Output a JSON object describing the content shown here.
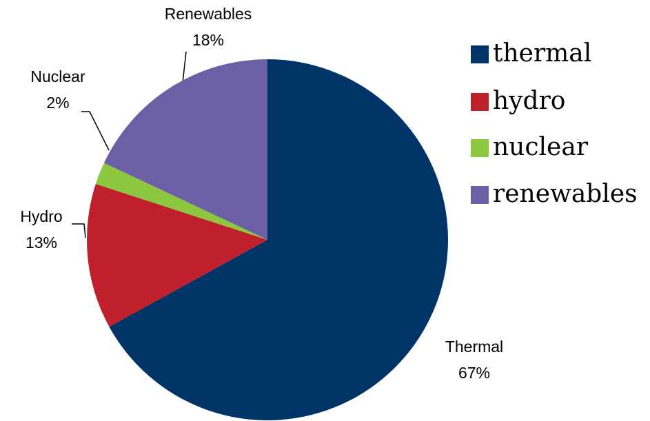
{
  "chart_data": {
    "type": "pie",
    "categories": [
      "Thermal",
      "Hydro",
      "Nuclear",
      "Renewables"
    ],
    "values": [
      67,
      13,
      2,
      18
    ],
    "value_labels": [
      "67%",
      "13%",
      "2%",
      "18%"
    ],
    "colors": [
      "#003366",
      "#c0202b",
      "#8dc63f",
      "#6b5fa5"
    ],
    "legend": {
      "position": "right",
      "entries": [
        "thermal",
        "hydro",
        "nuclear",
        "renewables"
      ]
    }
  }
}
